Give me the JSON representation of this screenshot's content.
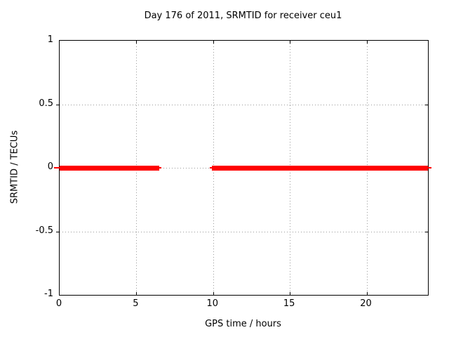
{
  "title": "Day 176 of 2011, SRMTID for receiver ceu1",
  "chart_data": {
    "type": "line",
    "title": "Day 176 of 2011, SRMTID for receiver ceu1",
    "xlabel": "GPS time / hours",
    "ylabel": "SRMTID / TECUs",
    "xlim": [
      0,
      24
    ],
    "ylim": [
      -1,
      1
    ],
    "xticks": [
      0,
      5,
      10,
      15,
      20
    ],
    "xtick_labels": [
      "0",
      "5",
      "10",
      "15",
      "20"
    ],
    "yticks": [
      1,
      0.5,
      0,
      -0.5,
      -1
    ],
    "ytick_labels": [
      "1",
      "0.5",
      "0",
      "-0.5",
      "-1"
    ],
    "grid": true,
    "legend": "none",
    "series": [
      {
        "name": "SRMTID",
        "color": "#ff0000",
        "y": 0,
        "segments": [
          {
            "x_start": 0,
            "x_end": 6.5
          },
          {
            "x_start": 9.9,
            "x_end": 24
          }
        ]
      }
    ],
    "colors": {
      "line": "#ff0000",
      "grid": "#9a9a9a",
      "border": "#000000",
      "background": "#ffffff"
    }
  }
}
